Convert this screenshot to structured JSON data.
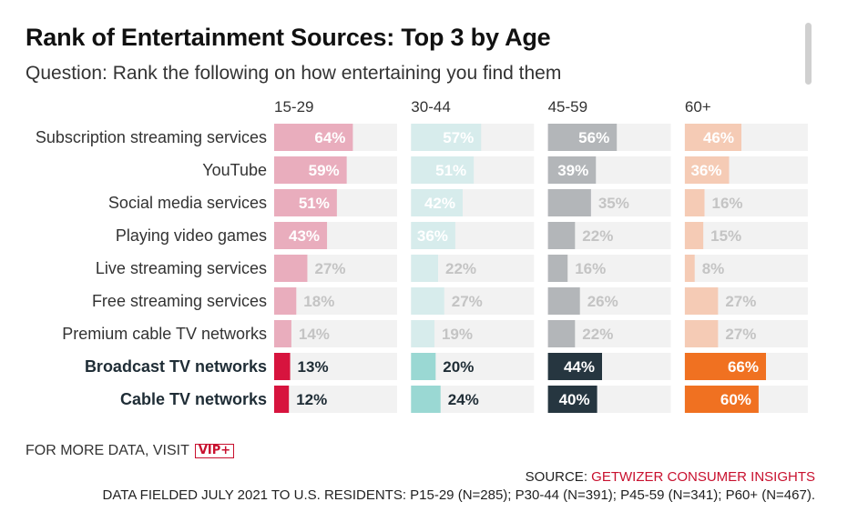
{
  "title": "Rank of Entertainment Sources: Top 3 by Age",
  "subtitle": "Question: Rank the following on how entertaining you find them",
  "footer": {
    "more_data": "FOR MORE DATA, VISIT",
    "vip_badge": "VIP+",
    "source_label": "SOURCE:",
    "source_org": "GETWIZER CONSUMER INSIGHTS",
    "fielded": "DATA FIELDED JULY 2021 TO U.S. RESIDENTS: P15-29 (N=285); P30-44 (N=391); P45-59 (N=341); P60+ (N=467)."
  },
  "chart_data": {
    "type": "bar",
    "orientation": "horizontal",
    "value_format": "percent",
    "xlim": [
      0,
      100
    ],
    "categories": [
      "Subscription streaming services",
      "YouTube",
      "Social media services",
      "Playing video games",
      "Live streaming services",
      "Free streaming services",
      "Premium cable TV networks",
      "Broadcast TV networks",
      "Cable TV networks"
    ],
    "highlighted_categories": [
      "Broadcast TV networks",
      "Cable TV networks"
    ],
    "series": [
      {
        "name": "15-29",
        "values": [
          64,
          59,
          51,
          43,
          27,
          18,
          14,
          13,
          12
        ],
        "colors": {
          "muted": "#e9adbd",
          "highlight": "#d7143e",
          "track": "#f2f2f2"
        }
      },
      {
        "name": "30-44",
        "values": [
          57,
          51,
          42,
          36,
          22,
          27,
          19,
          20,
          24
        ],
        "colors": {
          "muted": "#d7ecec",
          "highlight": "#9ad8d3",
          "track": "#f2f2f2"
        }
      },
      {
        "name": "45-59",
        "values": [
          56,
          39,
          35,
          22,
          16,
          26,
          22,
          44,
          40
        ],
        "colors": {
          "muted": "#b3b6b9",
          "highlight": "#263640",
          "track": "#f2f2f2"
        }
      },
      {
        "name": "60+",
        "values": [
          46,
          36,
          16,
          15,
          8,
          27,
          27,
          66,
          60
        ],
        "colors": {
          "muted": "#f5cbb5",
          "highlight": "#f07121",
          "track": "#f2f2f2"
        }
      }
    ]
  }
}
